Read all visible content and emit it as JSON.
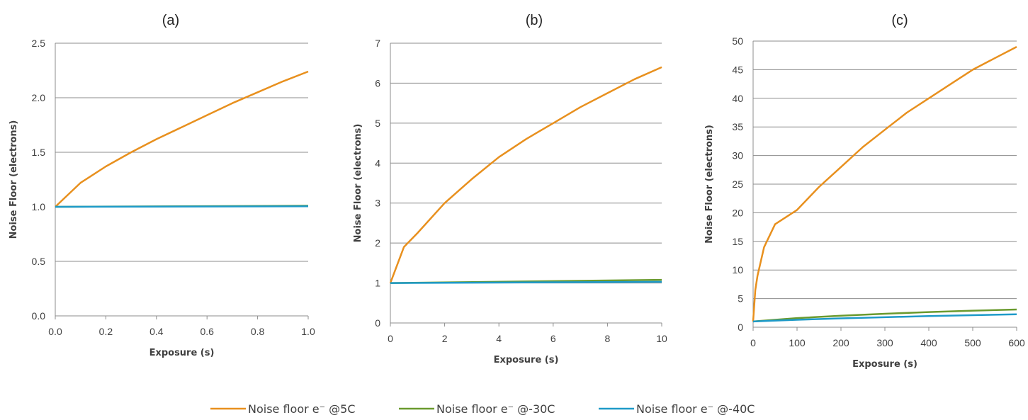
{
  "chart_data": [
    {
      "type": "line",
      "title": "(a)",
      "xlabel": "Exposure (s)",
      "ylabel": "Noise Floor (electrons)",
      "xlim": [
        0,
        1
      ],
      "ylim": [
        0,
        2.5
      ],
      "x_ticks": [
        "0.0",
        "0.2",
        "0.4",
        "0.6",
        "0.8",
        "1.0"
      ],
      "y_ticks": [
        "0.0",
        "0.5",
        "1.0",
        "1.5",
        "2.0",
        "2.5"
      ],
      "grid": "horizontal",
      "series": [
        {
          "name": "Noise floor e⁻ @5C",
          "color": "#e8901e",
          "x": [
            0,
            0.1,
            0.2,
            0.3,
            0.4,
            0.5,
            0.6,
            0.7,
            0.8,
            0.9,
            1.0
          ],
          "y": [
            1.0,
            1.22,
            1.37,
            1.5,
            1.62,
            1.73,
            1.84,
            1.95,
            2.05,
            2.15,
            2.24
          ]
        },
        {
          "name": "Noise floor e⁻ @-30C",
          "color": "#6a9a2e",
          "x": [
            0,
            1.0
          ],
          "y": [
            1.0,
            1.01
          ]
        },
        {
          "name": "Noise floor e⁻ @-40C",
          "color": "#1e9ac8",
          "x": [
            0,
            1.0
          ],
          "y": [
            1.0,
            1.005
          ]
        }
      ]
    },
    {
      "type": "line",
      "title": "(b)",
      "xlabel": "Exposure (s)",
      "ylabel": "Noise Floor (electrons)",
      "xlim": [
        0,
        10
      ],
      "ylim": [
        0,
        7
      ],
      "x_ticks": [
        "0",
        "2",
        "4",
        "6",
        "8",
        "10"
      ],
      "y_ticks": [
        "0",
        "1",
        "2",
        "3",
        "4",
        "5",
        "6",
        "7"
      ],
      "grid": "horizontal",
      "series": [
        {
          "name": "Noise floor e⁻ @5C",
          "color": "#e8901e",
          "x": [
            0,
            0.5,
            1,
            2,
            3,
            4,
            5,
            6,
            7,
            8,
            9,
            10
          ],
          "y": [
            1.0,
            1.9,
            2.25,
            3.0,
            3.6,
            4.15,
            4.6,
            5.0,
            5.4,
            5.75,
            6.1,
            6.4
          ]
        },
        {
          "name": "Noise floor e⁻ @-30C",
          "color": "#6a9a2e",
          "x": [
            0,
            10
          ],
          "y": [
            1.0,
            1.08
          ]
        },
        {
          "name": "Noise floor e⁻ @-40C",
          "color": "#1e9ac8",
          "x": [
            0,
            10
          ],
          "y": [
            1.0,
            1.03
          ]
        }
      ]
    },
    {
      "type": "line",
      "title": "(c)",
      "xlabel": "Exposure (s)",
      "ylabel": "Noise Floor (electrons)",
      "xlim": [
        0,
        600
      ],
      "ylim": [
        0,
        50
      ],
      "x_ticks": [
        "0",
        "100",
        "200",
        "300",
        "400",
        "500",
        "600"
      ],
      "y_ticks": [
        "0",
        "5",
        "10",
        "15",
        "20",
        "25",
        "30",
        "35",
        "40",
        "45",
        "50"
      ],
      "grid": "horizontal",
      "series": [
        {
          "name": "Noise floor e⁻ @5C",
          "color": "#e8901e",
          "x": [
            0,
            5,
            10,
            25,
            50,
            100,
            150,
            200,
            250,
            300,
            350,
            400,
            450,
            500,
            550,
            600
          ],
          "y": [
            1.0,
            6.5,
            9.0,
            14.0,
            18.0,
            20.5,
            24.5,
            28.0,
            31.5,
            34.5,
            37.5,
            40.0,
            42.5,
            45.0,
            47.0,
            49.0
          ]
        },
        {
          "name": "Noise floor e⁻ @-30C",
          "color": "#6a9a2e",
          "x": [
            0,
            100,
            200,
            300,
            400,
            500,
            600
          ],
          "y": [
            1.0,
            1.6,
            2.0,
            2.35,
            2.65,
            2.9,
            3.1
          ]
        },
        {
          "name": "Noise floor e⁻ @-40C",
          "color": "#1e9ac8",
          "x": [
            0,
            100,
            200,
            300,
            400,
            500,
            600
          ],
          "y": [
            1.0,
            1.3,
            1.55,
            1.75,
            1.95,
            2.1,
            2.25
          ]
        }
      ]
    }
  ],
  "legend": {
    "placement": "bottom-center",
    "items": [
      {
        "label": "Noise floor e⁻ @5C",
        "color": "#e8901e"
      },
      {
        "label": "Noise floor e⁻ @-30C",
        "color": "#6a9a2e"
      },
      {
        "label": "Noise floor e⁻ @-40C",
        "color": "#1e9ac8"
      }
    ]
  }
}
